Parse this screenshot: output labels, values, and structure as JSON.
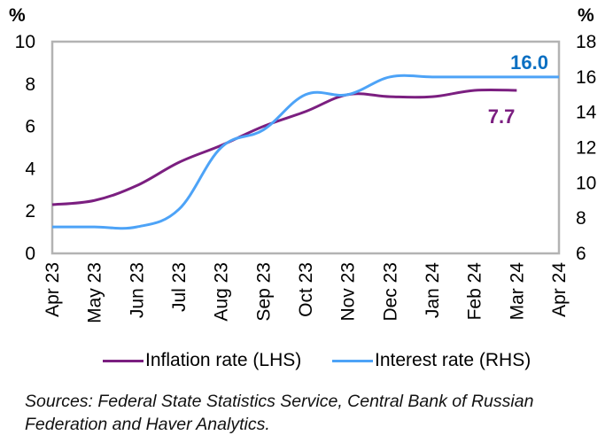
{
  "chart_data": {
    "type": "line",
    "title": "",
    "x": [
      "Apr 23",
      "May 23",
      "Jun 23",
      "Jul 23",
      "Aug 23",
      "Sep 23",
      "Oct 23",
      "Nov 23",
      "Dec 23",
      "Jan 24",
      "Feb 24",
      "Mar 24",
      "Apr 24"
    ],
    "left_axis": {
      "unit_label": "%",
      "ylim": [
        0,
        10
      ],
      "ticks": [
        "0",
        "2",
        "4",
        "6",
        "8",
        "10"
      ]
    },
    "right_axis": {
      "unit_label": "%",
      "ylim": [
        6,
        18
      ],
      "ticks": [
        "6",
        "8",
        "10",
        "12",
        "14",
        "16",
        "18"
      ]
    },
    "series": [
      {
        "name": "Inflation rate (LHS)",
        "axis": "left",
        "color": "#7B1F80",
        "values": [
          2.3,
          2.5,
          3.2,
          4.3,
          5.1,
          6.0,
          6.7,
          7.5,
          7.4,
          7.4,
          7.7,
          7.7,
          null
        ],
        "end_label": "7.7"
      },
      {
        "name": "Interest rate (RHS)",
        "axis": "right",
        "color": "#4DA3F7",
        "values": [
          7.5,
          7.5,
          7.5,
          8.5,
          12.0,
          13.0,
          15.0,
          15.0,
          16.0,
          16.0,
          16.0,
          16.0,
          16.0
        ],
        "end_label": "16.0",
        "end_label_color": "#0A6FC2"
      }
    ],
    "grid": false,
    "legend_position": "bottom"
  },
  "legend": {
    "items": [
      {
        "label": "Inflation rate (LHS)",
        "color": "#7B1F80"
      },
      {
        "label": "Interest rate (RHS)",
        "color": "#4DA3F7"
      }
    ]
  },
  "source": "Sources: Federal State Statistics Service, Central Bank of Russian Federation and Haver Analytics."
}
